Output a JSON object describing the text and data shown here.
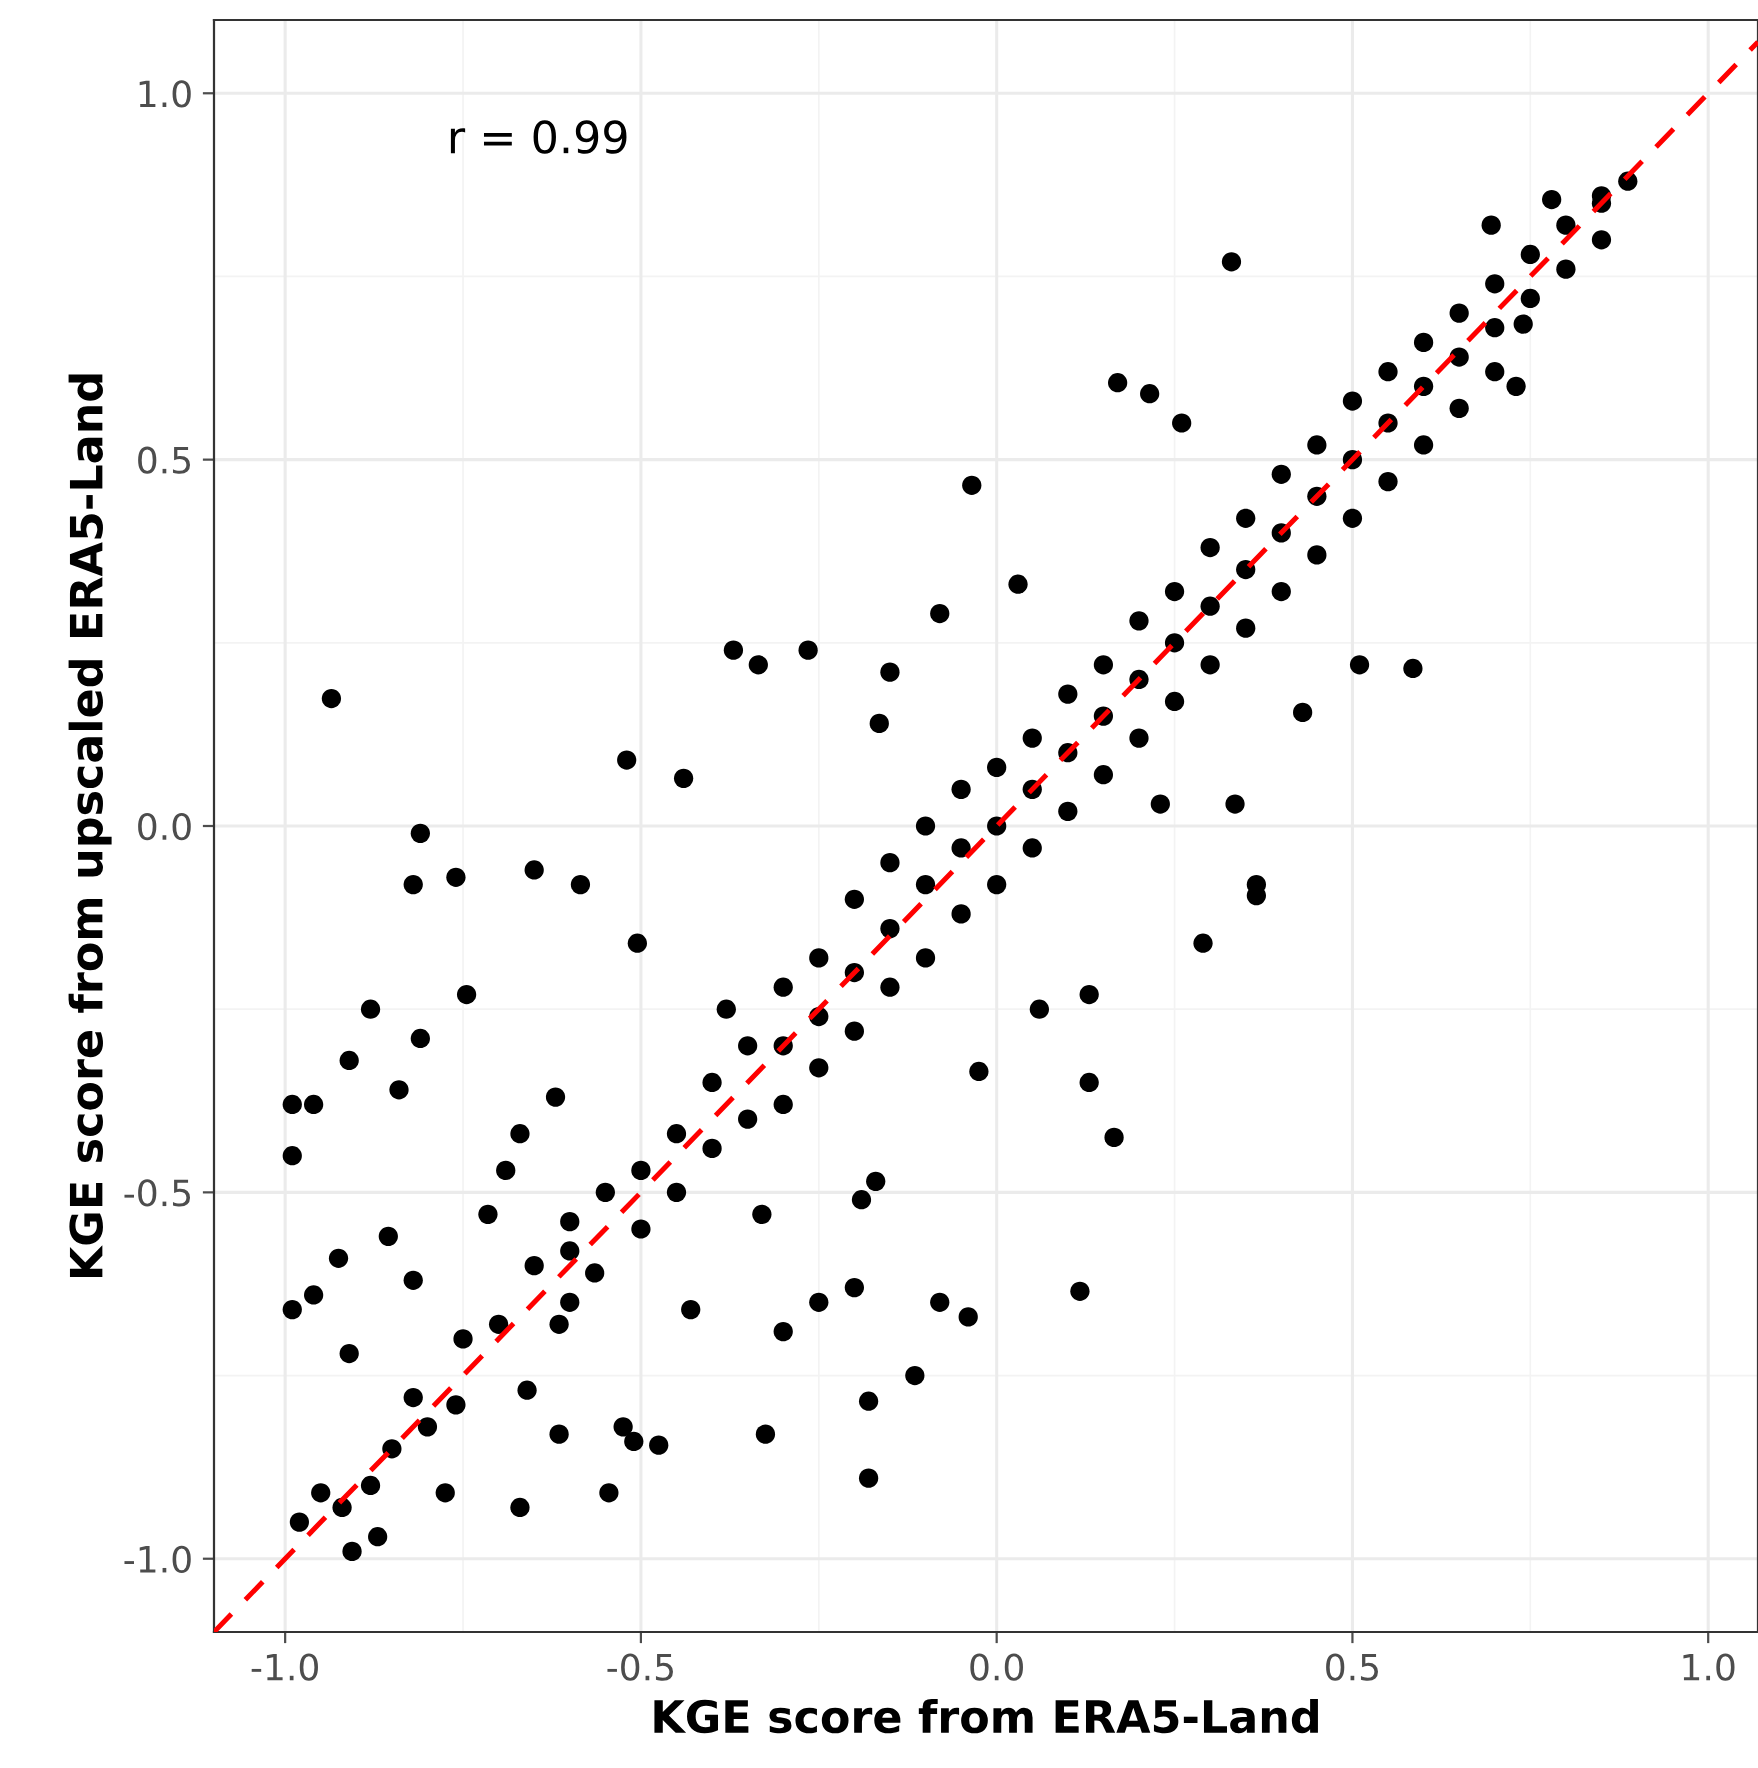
{
  "chart_data": {
    "type": "scatter",
    "xlabel": "KGE score from ERA5-Land",
    "ylabel": "KGE score from upscaled ERA5-Land",
    "annotations": [
      "r = 0.99"
    ],
    "xlim": [
      -1.1,
      1.07
    ],
    "ylim": [
      -1.1,
      1.1
    ],
    "xticks": [
      {
        "value": -1.0,
        "label": "-1.0"
      },
      {
        "value": -0.5,
        "label": "-0.5"
      },
      {
        "value": 0.0,
        "label": "0.0"
      },
      {
        "value": 0.5,
        "label": "0.5"
      },
      {
        "value": 1.0,
        "label": "1.0"
      }
    ],
    "yticks": [
      {
        "value": -1.0,
        "label": "-1.0"
      },
      {
        "value": -0.5,
        "label": "-0.5"
      },
      {
        "value": 0.0,
        "label": "0.0"
      },
      {
        "value": 0.5,
        "label": "0.5"
      },
      {
        "value": 1.0,
        "label": "1.0"
      }
    ],
    "grid": true,
    "series": [
      {
        "color": "#000000",
        "marker": "circle",
        "x": [
          -0.935,
          -0.81,
          -0.82,
          -0.76,
          -0.65,
          -0.585,
          -0.88,
          -0.745,
          -0.99,
          -0.96,
          -0.99,
          -0.91,
          -0.81,
          -0.84,
          -0.99,
          -0.96,
          -0.925,
          -0.855,
          -0.82,
          -0.91,
          -0.98,
          -0.95,
          -0.906,
          -0.87,
          -0.92,
          -0.82,
          -0.76,
          -0.775,
          -0.67,
          -0.715,
          -0.67,
          -0.62,
          -0.69,
          -0.6,
          -0.565,
          -0.615,
          -0.66,
          -0.545,
          -0.615,
          -0.51,
          -0.475,
          -0.525,
          -0.52,
          -0.44,
          -0.37,
          -0.335,
          -0.505,
          -0.43,
          -0.325,
          -0.33,
          -0.25,
          -0.3,
          -0.18,
          -0.18,
          -0.115,
          -0.2,
          -0.04,
          -0.08,
          0.117,
          0.165,
          0.13,
          0.13,
          0.29,
          0.365,
          0.365,
          0.33,
          0.585,
          -0.035,
          -0.265,
          -0.17,
          -0.19,
          -0.025,
          0.06,
          0.23,
          0.695,
          0.78,
          0.887,
          0.85,
          0.51,
          0.43,
          0.335,
          0.73,
          0.74,
          0.17,
          0.215,
          0.26,
          0.03,
          -0.08,
          -0.15,
          -0.165,
          -0.6,
          -0.55,
          -0.5,
          -0.5,
          -0.45,
          -0.45,
          -0.4,
          -0.4,
          -0.38,
          -0.35,
          -0.35,
          -0.3,
          -0.3,
          -0.3,
          -0.25,
          -0.25,
          -0.25,
          -0.2,
          -0.2,
          -0.2,
          -0.15,
          -0.15,
          -0.15,
          -0.1,
          -0.1,
          -0.1,
          -0.05,
          -0.05,
          -0.05,
          0.0,
          0.0,
          0.0,
          0.05,
          0.05,
          0.05,
          0.1,
          0.1,
          0.1,
          0.15,
          0.15,
          0.15,
          0.2,
          0.2,
          0.2,
          0.25,
          0.25,
          0.25,
          0.3,
          0.3,
          0.3,
          0.35,
          0.35,
          0.35,
          0.4,
          0.4,
          0.4,
          0.45,
          0.45,
          0.45,
          0.5,
          0.5,
          0.5,
          0.55,
          0.55,
          0.55,
          0.6,
          0.6,
          0.6,
          0.65,
          0.65,
          0.65,
          0.7,
          0.7,
          0.7,
          0.75,
          0.75,
          0.8,
          0.8,
          0.85,
          0.85,
          -0.7,
          -0.75,
          -0.8,
          -0.85,
          -0.88,
          -0.65,
          -0.6
        ],
        "values": [
          0.174,
          -0.01,
          -0.08,
          -0.07,
          -0.06,
          -0.08,
          -0.25,
          -0.23,
          -0.38,
          -0.38,
          -0.45,
          -0.32,
          -0.29,
          -0.36,
          -0.66,
          -0.64,
          -0.59,
          -0.56,
          -0.62,
          -0.72,
          -0.95,
          -0.91,
          -0.99,
          -0.97,
          -0.93,
          -0.78,
          -0.79,
          -0.91,
          -0.93,
          -0.53,
          -0.42,
          -0.37,
          -0.47,
          -0.54,
          -0.61,
          -0.68,
          -0.77,
          -0.91,
          -0.83,
          -0.84,
          -0.845,
          -0.82,
          0.09,
          0.065,
          0.24,
          0.22,
          -0.16,
          -0.66,
          -0.83,
          -0.53,
          -0.65,
          -0.69,
          -0.89,
          -0.785,
          -0.75,
          -0.63,
          -0.67,
          -0.65,
          -0.635,
          -0.425,
          -0.35,
          -0.23,
          -0.16,
          -0.08,
          -0.095,
          0.77,
          0.215,
          0.465,
          0.24,
          -0.485,
          -0.51,
          -0.335,
          -0.25,
          0.03,
          0.82,
          0.855,
          0.88,
          0.85,
          0.22,
          0.155,
          0.03,
          0.6,
          0.685,
          0.605,
          0.59,
          0.55,
          0.33,
          0.29,
          0.21,
          0.14,
          -0.58,
          -0.5,
          -0.47,
          -0.55,
          -0.42,
          -0.5,
          -0.35,
          -0.44,
          -0.25,
          -0.3,
          -0.4,
          -0.22,
          -0.3,
          -0.38,
          -0.18,
          -0.26,
          -0.33,
          -0.1,
          -0.2,
          -0.28,
          -0.05,
          -0.14,
          -0.22,
          0.0,
          -0.08,
          -0.18,
          0.05,
          -0.03,
          -0.12,
          0.08,
          0.0,
          -0.08,
          0.12,
          0.05,
          -0.03,
          0.18,
          0.1,
          0.02,
          0.22,
          0.15,
          0.07,
          0.28,
          0.2,
          0.12,
          0.32,
          0.25,
          0.17,
          0.38,
          0.3,
          0.22,
          0.42,
          0.35,
          0.27,
          0.48,
          0.4,
          0.32,
          0.52,
          0.45,
          0.37,
          0.58,
          0.5,
          0.42,
          0.62,
          0.55,
          0.47,
          0.66,
          0.6,
          0.52,
          0.7,
          0.64,
          0.57,
          0.74,
          0.68,
          0.62,
          0.78,
          0.72,
          0.82,
          0.76,
          0.86,
          0.8,
          -0.68,
          -0.7,
          -0.82,
          -0.85,
          -0.9,
          -0.6,
          -0.65
        ]
      },
      {
        "type": "line",
        "color": "#ff0000",
        "line_style": "dashed",
        "marker": "none",
        "x": [
          -1.1,
          1.07
        ],
        "values": [
          -1.1,
          1.07
        ]
      }
    ]
  }
}
